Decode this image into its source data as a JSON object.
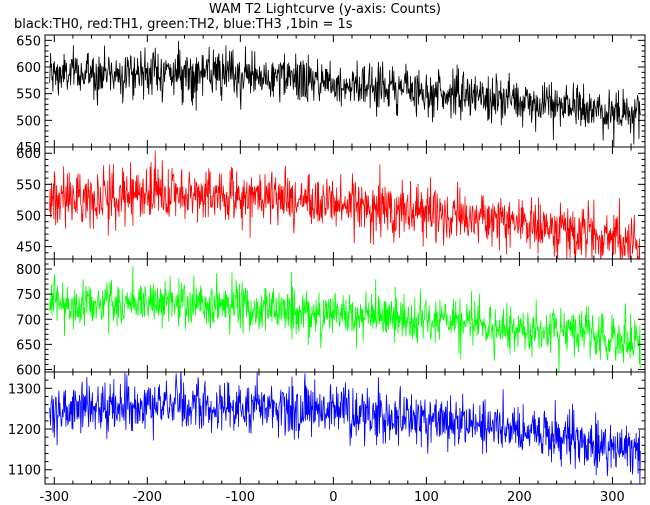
{
  "chart_data": {
    "type": "line",
    "title": "WAM T2 Lightcurve (y-axis: Counts)",
    "subtitle": "black:TH0, red:TH1, green:TH2, blue:TH3 ,1bin = 1s",
    "xlabel": "",
    "ylabel": "",
    "xlim": [
      -310,
      335
    ],
    "x_ticks": [
      -300,
      -200,
      -100,
      0,
      100,
      200,
      300
    ],
    "grid": false,
    "panels": [
      {
        "series_name": "TH0",
        "color": "#000000",
        "ylim": [
          450,
          660
        ],
        "y_ticks": [
          450,
          500,
          550,
          600,
          650
        ],
        "trend": {
          "x": [
            -305,
            -200,
            -100,
            0,
            100,
            200,
            330
          ],
          "y": [
            585,
            592,
            583,
            572,
            555,
            535,
            510
          ]
        },
        "noise_sd": 22,
        "bin_s": 1
      },
      {
        "series_name": "TH1",
        "color": "#ff0000",
        "ylim": [
          430,
          610
        ],
        "y_ticks": [
          450,
          500,
          550,
          600
        ],
        "trend": {
          "x": [
            -305,
            -200,
            -100,
            0,
            100,
            200,
            330
          ],
          "y": [
            527,
            535,
            532,
            520,
            505,
            490,
            450
          ]
        },
        "noise_sd": 22,
        "bin_s": 1
      },
      {
        "series_name": "TH2",
        "color": "#00ff00",
        "ylim": [
          595,
          820
        ],
        "y_ticks": [
          600,
          650,
          700,
          750,
          800
        ],
        "trend": {
          "x": [
            -305,
            -200,
            -100,
            0,
            100,
            200,
            330
          ],
          "y": [
            730,
            735,
            725,
            710,
            695,
            682,
            660
          ]
        },
        "noise_sd": 24,
        "bin_s": 1
      },
      {
        "series_name": "TH3",
        "color": "#0000ff",
        "ylim": [
          1065,
          1340
        ],
        "y_ticks": [
          1100,
          1200,
          1300
        ],
        "trend": {
          "x": [
            -305,
            -200,
            -100,
            0,
            100,
            200,
            330
          ],
          "y": [
            1245,
            1258,
            1255,
            1245,
            1225,
            1200,
            1140
          ]
        },
        "noise_sd": 32,
        "bin_s": 1
      }
    ]
  }
}
